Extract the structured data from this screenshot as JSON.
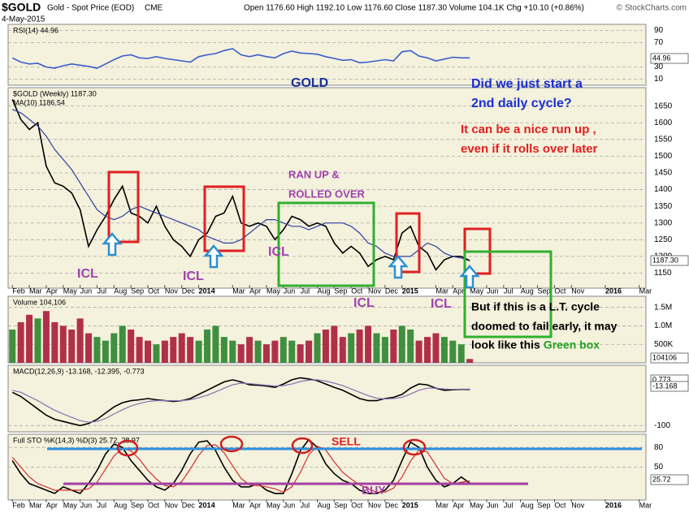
{
  "header": {
    "symbol": "$GOLD",
    "name": "Gold - Spot Price (EOD)",
    "exchange": "CME",
    "date": "4-May-2015",
    "quote": "Open 1176.60  High 1192.10  Low 1176.60  Close 1187.30  Volume 104.1K  Chg +10.10 (+0.86%)",
    "credit": "© StockCharts.com"
  },
  "chart_data": {
    "type": "stock",
    "x": [
      0,
      0.5,
      1,
      1.5,
      2,
      2.5,
      3,
      3.5,
      4,
      4.5,
      5,
      5.5,
      6,
      6.5,
      7,
      7.5,
      8,
      8.5,
      9,
      9.5,
      10,
      10.5,
      11,
      11.5,
      12,
      12.5,
      13,
      13.5,
      14,
      14.5,
      15,
      15.5,
      16,
      16.5,
      17,
      17.5,
      18,
      18.5,
      19,
      19.5,
      20,
      20.5,
      21,
      21.5,
      22,
      22.5,
      23,
      23.5,
      24,
      24.5,
      25,
      25.5,
      26,
      26.5,
      27
    ],
    "xlim": [
      -0.25,
      37.4
    ],
    "xticks": [
      {
        "value": 0,
        "label": "Feb"
      },
      {
        "value": 1,
        "label": "Mar"
      },
      {
        "value": 2,
        "label": "Apr"
      },
      {
        "value": 3,
        "label": "May"
      },
      {
        "value": 4,
        "label": "Jun"
      },
      {
        "value": 5,
        "label": "Jul"
      },
      {
        "value": 6,
        "label": "Aug"
      },
      {
        "value": 7,
        "label": "Sep"
      },
      {
        "value": 8,
        "label": "Oct"
      },
      {
        "value": 9,
        "label": "Nov"
      },
      {
        "value": 10,
        "label": "Dec"
      },
      {
        "value": 11,
        "label": "2014"
      },
      {
        "value": 13,
        "label": "Mar"
      },
      {
        "value": 14,
        "label": "Apr"
      },
      {
        "value": 15,
        "label": "May"
      },
      {
        "value": 16,
        "label": "Jun"
      },
      {
        "value": 17,
        "label": "Jul"
      },
      {
        "value": 18,
        "label": "Aug"
      },
      {
        "value": 19,
        "label": "Sep"
      },
      {
        "value": 20,
        "label": "Oct"
      },
      {
        "value": 21,
        "label": "Nov"
      },
      {
        "value": 22,
        "label": "Dec"
      },
      {
        "value": 23,
        "label": "2015"
      },
      {
        "value": 25,
        "label": "Mar"
      },
      {
        "value": 26,
        "label": "Apr"
      },
      {
        "value": 27,
        "label": "May"
      },
      {
        "value": 28,
        "label": "Jun"
      },
      {
        "value": 29,
        "label": "Jul"
      },
      {
        "value": 30,
        "label": "Aug"
      },
      {
        "value": 31,
        "label": "Sep"
      },
      {
        "value": 32,
        "label": "Oct"
      },
      {
        "value": 33,
        "label": "Nov"
      },
      {
        "value": 35,
        "label": "2016"
      },
      {
        "value": 37,
        "label": "Mar"
      }
    ],
    "panels": [
      {
        "type": "line",
        "labels": [
          "RSI(14) 44.96"
        ],
        "ylim": [
          0,
          100
        ],
        "yticks": [
          10,
          30,
          70,
          90
        ],
        "boxes": [
          "44.96"
        ],
        "series": [
          {
            "color": "#3a5fcd",
            "values": [
              45,
              38,
              35,
              36,
              30,
              28,
              32,
              35,
              33,
              31,
              28,
              35,
              42,
              48,
              50,
              45,
              44,
              47,
              44,
              42,
              40,
              38,
              47,
              50,
              52,
              57,
              60,
              50,
              47,
              50,
              47,
              45,
              52,
              56,
              53,
              52,
              51,
              47,
              44,
              41,
              42,
              37,
              38,
              40,
              42,
              40,
              55,
              57,
              48,
              45,
              40,
              43,
              46,
              45,
              44.96
            ]
          }
        ]
      },
      {
        "type": "line",
        "labels": [
          "$GOLD (Weekly) 1187.30",
          "MA(10) 1186.54"
        ],
        "ylim": [
          1105,
          1705
        ],
        "yticks": [
          1150,
          1200,
          1250,
          1300,
          1350,
          1400,
          1450,
          1500,
          1550,
          1600,
          1650
        ],
        "boxes": [
          "1187.30"
        ],
        "series": [
          {
            "color": "#000000",
            "values": [
              1670,
              1610,
              1580,
              1600,
              1470,
              1420,
              1410,
              1390,
              1340,
              1230,
              1280,
              1320,
              1370,
              1410,
              1330,
              1320,
              1300,
              1350,
              1290,
              1250,
              1230,
              1200,
              1250,
              1270,
              1320,
              1330,
              1380,
              1300,
              1290,
              1300,
              1290,
              1250,
              1280,
              1320,
              1310,
              1290,
              1300,
              1290,
              1240,
              1210,
              1230,
              1210,
              1170,
              1190,
              1200,
              1190,
              1270,
              1290,
              1230,
              1210,
              1160,
              1190,
              1200,
              1200,
              1187.3
            ]
          },
          {
            "color": "#2b3fa0",
            "values": [
              1640,
              1630,
              1610,
              1590,
              1560,
              1520,
              1490,
              1460,
              1420,
              1380,
              1340,
              1320,
              1310,
              1320,
              1340,
              1350,
              1340,
              1330,
              1320,
              1310,
              1300,
              1290,
              1280,
              1260,
              1250,
              1240,
              1240,
              1250,
              1270,
              1290,
              1310,
              1310,
              1300,
              1290,
              1290,
              1280,
              1290,
              1300,
              1300,
              1300,
              1290,
              1270,
              1240,
              1230,
              1210,
              1200,
              1200,
              1200,
              1220,
              1240,
              1230,
              1210,
              1200,
              1195,
              1186.54
            ]
          }
        ]
      },
      {
        "type": "bar",
        "labels": [
          "Volume 104,106"
        ],
        "ylim": [
          0,
          1800000
        ],
        "yticks": [
          {
            "value": 500000,
            "label": "500K"
          },
          {
            "value": 1000000,
            "label": "1.0M"
          },
          {
            "value": 1500000,
            "label": "1.5M"
          }
        ],
        "boxes": [
          "104106"
        ],
        "up_color": "#3f8f3f",
        "down_color": "#b0304a",
        "series": [
          {
            "values": [
              900000,
              1100000,
              1300000,
              1200000,
              1400000,
              1100000,
              1000000,
              900000,
              1200000,
              800000,
              700000,
              600000,
              800000,
              1000000,
              900000,
              700000,
              600000,
              500000,
              600000,
              700000,
              800000,
              700000,
              600000,
              900000,
              1000000,
              700000,
              600000,
              500000,
              700000,
              600000,
              500000,
              600000,
              700000,
              600000,
              500000,
              600000,
              800000,
              900000,
              1000000,
              700000,
              800000,
              900000,
              1000000,
              800000,
              700000,
              900000,
              1000000,
              900000,
              600000,
              700000,
              800000,
              700000,
              600000,
              500000,
              104106
            ]
          }
        ]
      },
      {
        "type": "line",
        "labels": [
          "MACD(12,26,9) -13.168, -12.395, -0.773"
        ],
        "ylim": [
          -115,
          45
        ],
        "yticks": [
          -100
        ],
        "boxes": [
          "0.773",
          "-13.168"
        ],
        "series": [
          {
            "color": "#000000",
            "values": [
              -20,
              -30,
              -45,
              -60,
              -75,
              -85,
              -90,
              -95,
              -100,
              -95,
              -85,
              -70,
              -55,
              -45,
              -40,
              -38,
              -35,
              -38,
              -40,
              -42,
              -40,
              -35,
              -25,
              -15,
              -5,
              5,
              10,
              5,
              -2,
              -3,
              -5,
              -8,
              0,
              10,
              15,
              12,
              8,
              0,
              -8,
              -15,
              -25,
              -35,
              -40,
              -40,
              -35,
              -32,
              -25,
              -10,
              0,
              -2,
              -10,
              -15,
              -14,
              -13,
              -13.168
            ]
          },
          {
            "color": "#8a6fb0",
            "values": [
              -15,
              -20,
              -30,
              -40,
              -52,
              -63,
              -72,
              -80,
              -88,
              -92,
              -90,
              -83,
              -72,
              -62,
              -53,
              -47,
              -42,
              -40,
              -40,
              -40,
              -40,
              -38,
              -33,
              -27,
              -19,
              -10,
              -2,
              2,
              1,
              -1,
              -3,
              -5,
              -4,
              0,
              6,
              9,
              10,
              7,
              2,
              -4,
              -12,
              -20,
              -28,
              -34,
              -36,
              -35,
              -32,
              -24,
              -15,
              -10,
              -10,
              -12,
              -13,
              -13,
              -12.395
            ]
          }
        ]
      },
      {
        "type": "line",
        "labels": [
          "Full STO %K(14,3) %D(3) 25.72, 28.97"
        ],
        "ylim": [
          0,
          100
        ],
        "yticks": [
          50,
          80
        ],
        "boxes": [
          "25.72"
        ],
        "series": [
          {
            "color": "#000000",
            "values": [
              60,
              40,
              25,
              20,
              15,
              10,
              20,
              15,
              10,
              25,
              45,
              70,
              85,
              80,
              60,
              45,
              30,
              20,
              15,
              25,
              45,
              70,
              88,
              90,
              75,
              50,
              30,
              20,
              20,
              25,
              15,
              10,
              10,
              40,
              75,
              92,
              80,
              55,
              40,
              30,
              25,
              15,
              10,
              10,
              15,
              30,
              60,
              88,
              80,
              50,
              30,
              20,
              25,
              35,
              25.72
            ]
          },
          {
            "color": "#d03030",
            "values": [
              65,
              50,
              35,
              25,
              20,
              15,
              15,
              15,
              15,
              17,
              27,
              47,
              67,
              78,
              75,
              62,
              45,
              32,
              22,
              20,
              28,
              47,
              68,
              83,
              84,
              72,
              52,
              33,
              23,
              22,
              20,
              17,
              12,
              20,
              42,
              69,
              82,
              76,
              58,
              42,
              32,
              23,
              17,
              12,
              12,
              18,
              35,
              59,
              76,
              73,
              53,
              33,
              25,
              27,
              28.97
            ]
          }
        ]
      }
    ],
    "annotations": [
      "GOLD",
      "Did we just start a",
      "2nd daily cycle?",
      "It can be a nice run up ,",
      "even if it rolls over later",
      "RAN UP &",
      "ROLLED OVER",
      "ICL",
      "ICL",
      "ICL",
      "ICL",
      "ICL",
      "But if this is a L.T. cycle",
      "doomed to fail early, it may",
      "look like this ",
      "Green box",
      "SELL",
      "BUY"
    ]
  }
}
